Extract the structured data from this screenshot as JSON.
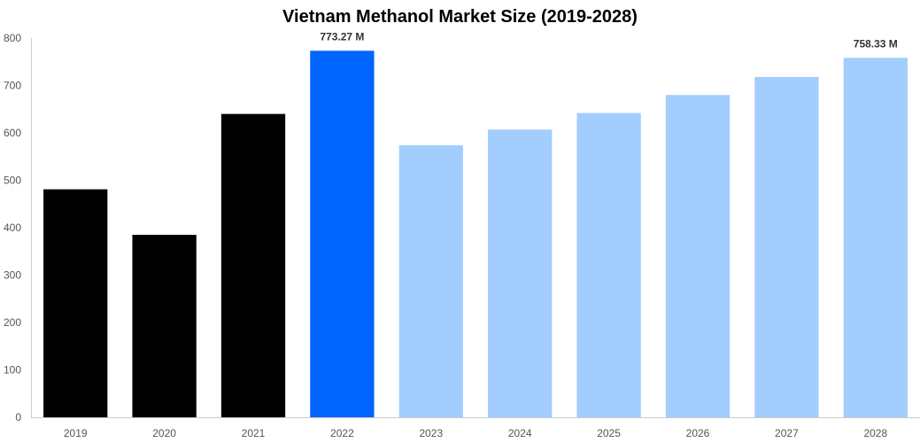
{
  "title": "Vietnam Methanol Market Size (2019-2028)",
  "colors": {
    "historical": "#000000",
    "current": "#0066ff",
    "forecast": "#a3cdfd",
    "axis": "#cccccc",
    "tick_text": "#555555",
    "label_text": "#333333"
  },
  "chart_data": {
    "type": "bar",
    "title": "Vietnam Methanol Market Size (2019-2028)",
    "xlabel": "",
    "ylabel": "",
    "ylim": [
      0,
      800
    ],
    "yticks": [
      0,
      100,
      200,
      300,
      400,
      500,
      600,
      700,
      800
    ],
    "grid": false,
    "categories": [
      "2019",
      "2020",
      "2021",
      "2022",
      "2023",
      "2024",
      "2025",
      "2026",
      "2027",
      "2028"
    ],
    "values": [
      481,
      385,
      640,
      773.27,
      574,
      607,
      642,
      680,
      718,
      758.33
    ],
    "bar_types": [
      "historical",
      "historical",
      "historical",
      "current",
      "forecast",
      "forecast",
      "forecast",
      "forecast",
      "forecast",
      "forecast"
    ],
    "data_labels": [
      "",
      "",
      "",
      "773.27 M",
      "",
      "",
      "",
      "",
      "",
      "758.33 M"
    ]
  }
}
